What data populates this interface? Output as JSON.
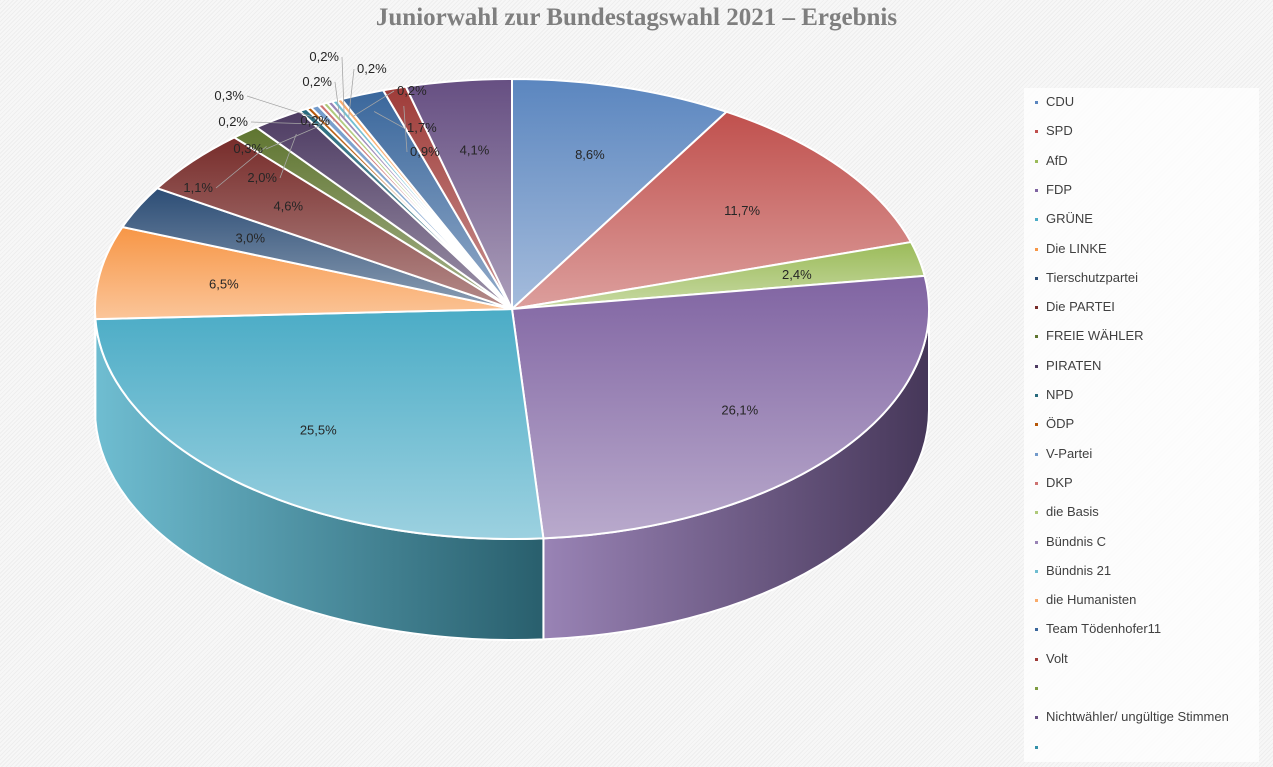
{
  "chart_data": {
    "type": "pie",
    "title": "Juniorwahl zur Bundestagswahl 2021 – Ergebnis",
    "slices": [
      {
        "label": "CDU",
        "value": 8.6,
        "display": "8,6%",
        "color": "#5b86bf"
      },
      {
        "label": "SPD",
        "value": 11.7,
        "display": "11,7%",
        "color": "#c0504d"
      },
      {
        "label": "AfD",
        "value": 2.4,
        "display": "2,4%",
        "color": "#9bbb59"
      },
      {
        "label": "FDP",
        "value": 26.1,
        "display": "26,1%",
        "color": "#8064a2"
      },
      {
        "label": "GRÜNE",
        "value": 25.5,
        "display": "25,5%",
        "color": "#4bacc6"
      },
      {
        "label": "Die LINKE",
        "value": 6.5,
        "display": "6,5%",
        "color": "#f79646"
      },
      {
        "label": "Tierschutzpartei",
        "value": 3.0,
        "display": "3,0%",
        "color": "#2c4d75"
      },
      {
        "label": "Die PARTEI",
        "value": 4.6,
        "display": "4,6%",
        "color": "#772c2a"
      },
      {
        "label": "FREIE WÄHLER",
        "value": 1.1,
        "display": "1,1%",
        "color": "#5f7530"
      },
      {
        "label": "PIRATEN",
        "value": 2.0,
        "display": "2,0%",
        "color": "#4d3b62"
      },
      {
        "label": "NPD",
        "value": 0.3,
        "display": "0,3%",
        "color": "#276a7c"
      },
      {
        "label": "ÖDP",
        "value": 0.2,
        "display": "0,2%",
        "color": "#b65708"
      },
      {
        "label": "V-Partei",
        "value": 0.3,
        "display": "0,3%",
        "color": "#729aca"
      },
      {
        "label": "DKP",
        "value": 0.2,
        "display": "0,2%",
        "color": "#cd7371"
      },
      {
        "label": "die Basis",
        "value": 0.2,
        "display": "0,2%",
        "color": "#afc97a"
      },
      {
        "label": "Bündnis C",
        "value": 0.2,
        "display": "0,2%",
        "color": "#9983b5"
      },
      {
        "label": "Bündnis 21",
        "value": 0.2,
        "display": "0,2%",
        "color": "#6fbdd1"
      },
      {
        "label": "die Humanisten",
        "value": 0.2,
        "display": "0,2%",
        "color": "#f9ab6b"
      },
      {
        "label": "Team Tödenhofer11",
        "value": 1.7,
        "display": "1,7%",
        "color": "#3a679c"
      },
      {
        "label": "Volt",
        "value": 0.9,
        "display": "0,9%",
        "color": "#9e3b38"
      },
      {
        "label": "",
        "value": 0,
        "display": "",
        "color": "#7e9c40"
      },
      {
        "label": "Nichtwähler/ ungültige Stimmen",
        "value": 4.1,
        "display": "4,1%",
        "color": "#664f82"
      },
      {
        "label": "",
        "value": 0,
        "display": "",
        "color": "#3390a9"
      }
    ],
    "start_angle_deg": -90,
    "legend_position": "right",
    "style": "3d-pie"
  }
}
